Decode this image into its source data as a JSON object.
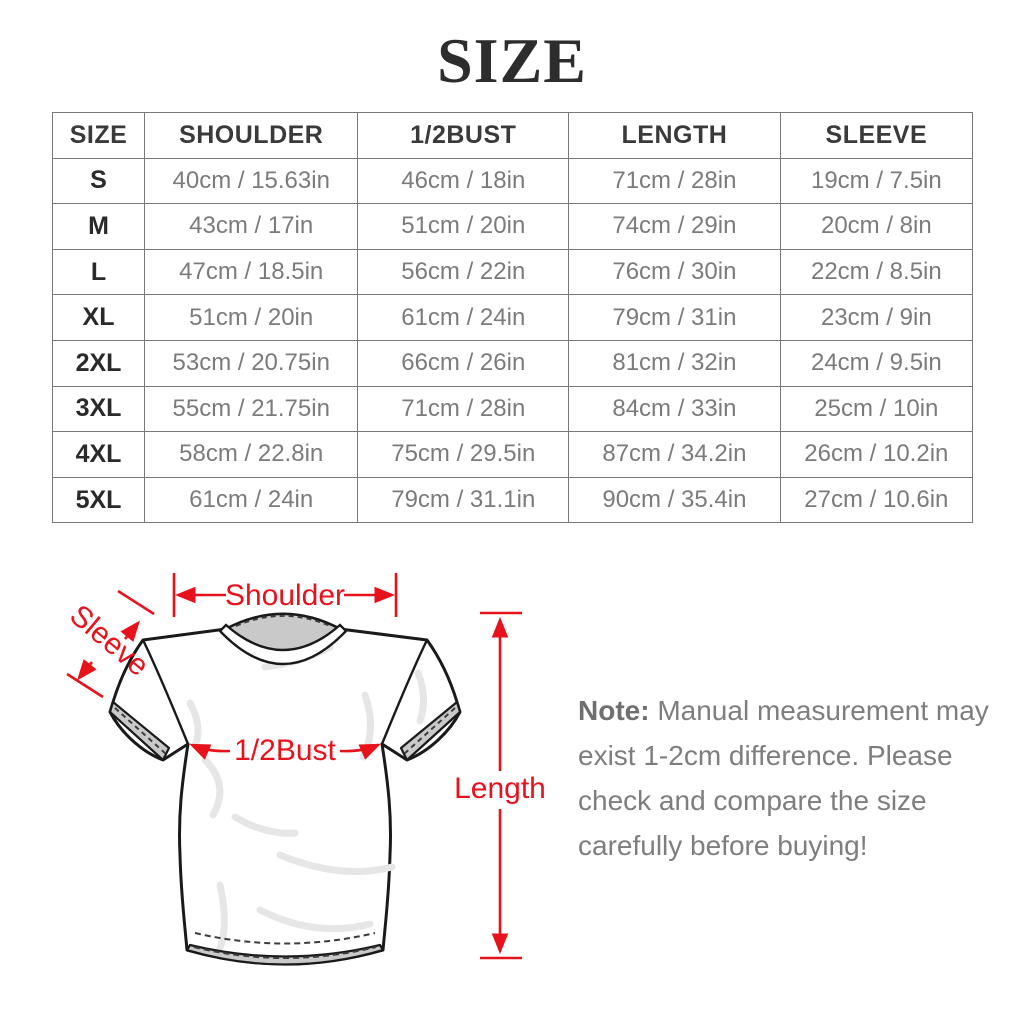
{
  "title": "SIZE",
  "table": {
    "columns": [
      "SIZE",
      "SHOULDER",
      "1/2BUST",
      "LENGTH",
      "SLEEVE"
    ],
    "rows": [
      [
        "S",
        "40cm / 15.63in",
        "46cm / 18in",
        "71cm / 28in",
        "19cm / 7.5in"
      ],
      [
        "M",
        "43cm / 17in",
        "51cm / 20in",
        "74cm / 29in",
        "20cm / 8in"
      ],
      [
        "L",
        "47cm / 18.5in",
        "56cm / 22in",
        "76cm / 30in",
        "22cm / 8.5in"
      ],
      [
        "XL",
        "51cm / 20in",
        "61cm / 24in",
        "79cm / 31in",
        "23cm / 9in"
      ],
      [
        "2XL",
        "53cm / 20.75in",
        "66cm / 26in",
        "81cm / 32in",
        "24cm / 9.5in"
      ],
      [
        "3XL",
        "55cm / 21.75in",
        "71cm / 28in",
        "84cm / 33in",
        "25cm / 10in"
      ],
      [
        "4XL",
        "58cm / 22.8in",
        "75cm / 29.5in",
        "87cm / 34.2in",
        "26cm / 10.2in"
      ],
      [
        "5XL",
        "61cm / 24in",
        "79cm / 31.1in",
        "90cm / 35.4in",
        "27cm / 10.6in"
      ]
    ]
  },
  "diagram": {
    "labels": {
      "shoulder": "Shoulder",
      "sleeve": "Sleeve",
      "bust": "1/2Bust",
      "length": "Length"
    }
  },
  "note": {
    "prefix": "Note:",
    "text": "Manual measurement may exist 1-2cm difference. Please check and compare the size carefully before buying!"
  },
  "colors": {
    "accent_red": "#e8121c",
    "table_grid": "#787878",
    "cell_text": "#7b7b7b",
    "header_text": "#3a3a3a",
    "drawing_outline": "#1a1a1a",
    "drawing_shade": "#c9c9c9",
    "note_text": "#7e7e7e"
  }
}
